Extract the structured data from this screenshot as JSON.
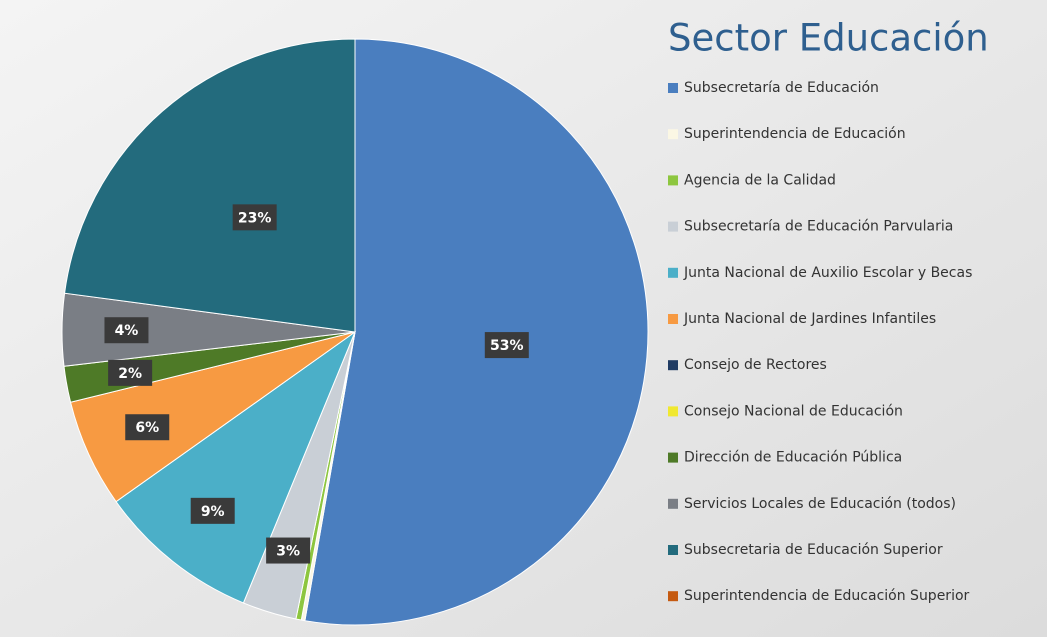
{
  "chart_data": {
    "type": "pie",
    "title": "Sector Educación",
    "categories": [
      "Subsecretaría de Educación",
      "Superintendencia de Educación",
      "Agencia de la Calidad",
      "Subsecretaría de Educación Parvularia",
      "Junta Nacional de Auxilio Escolar y Becas",
      "Junta Nacional de Jardines Infantiles",
      "Consejo de Rectores",
      "Consejo Nacional de Educación",
      "Dirección de Educación Pública",
      "Servicios Locales de Educación (todos)",
      "Subsecretaria de Educación Superior",
      "Superintendencia de Educación Superior"
    ],
    "values": [
      53,
      0.2,
      0.3,
      3,
      9,
      6,
      0,
      0,
      2,
      4,
      23,
      0
    ],
    "value_labels": [
      "53%",
      null,
      null,
      "3%",
      "9%",
      "6%",
      null,
      null,
      "2%",
      "4%",
      "23%",
      null
    ],
    "colors": [
      "#4a7ebf",
      "#fbf7e4",
      "#8dc63f",
      "#c9cfd6",
      "#4bafc8",
      "#f79a42",
      "#1f3b63",
      "#f0e830",
      "#4e7a27",
      "#7a7e85",
      "#236b7d",
      "#c55a11"
    ],
    "legend": "right"
  }
}
